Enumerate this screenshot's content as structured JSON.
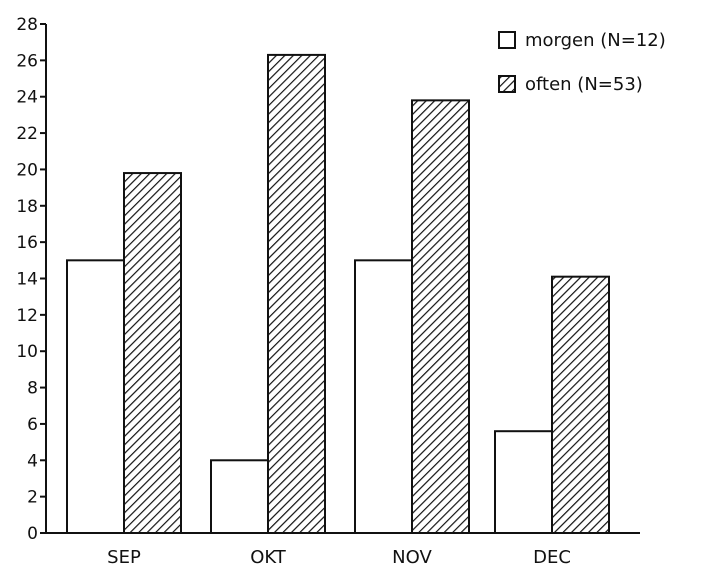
{
  "chart_data": {
    "type": "bar",
    "categories": [
      "SEP",
      "OKT",
      "NOV",
      "DEC"
    ],
    "series": [
      {
        "name": "morgen (N=12)",
        "values": [
          15.0,
          4.0,
          15.0,
          5.6
        ],
        "fill": "none"
      },
      {
        "name": "often (N=53)",
        "values": [
          19.8,
          26.3,
          23.8,
          14.1
        ],
        "fill": "hatched"
      }
    ],
    "title": "",
    "xlabel": "",
    "ylabel": "",
    "ylim": [
      0,
      28
    ],
    "yticks": [
      "0",
      "2",
      "4",
      "6",
      "8",
      "10",
      "12",
      "14",
      "16",
      "18",
      "20",
      "22",
      "24",
      "26",
      "28"
    ],
    "grid": false,
    "legend_position": "top-right",
    "colors": {
      "stroke": "#111111",
      "hatch": "#111111",
      "background": "#ffffff"
    }
  }
}
